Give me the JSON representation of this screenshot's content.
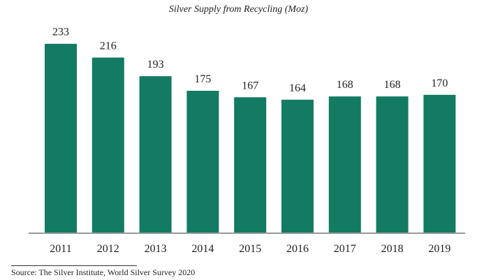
{
  "chart_data": {
    "type": "bar",
    "title": "Silver Supply from Recycling (Moz)",
    "categories": [
      "2011",
      "2012",
      "2013",
      "2014",
      "2015",
      "2016",
      "2017",
      "2018",
      "2019"
    ],
    "values": [
      233,
      216,
      193,
      175,
      167,
      164,
      168,
      168,
      170
    ],
    "xlabel": "",
    "ylabel": "",
    "ylim": [
      0,
      250
    ],
    "grid": false,
    "data_labels": true,
    "bar_color": "#137a63",
    "source": "Source: The Silver Institute, World Silver Survey 2020"
  }
}
